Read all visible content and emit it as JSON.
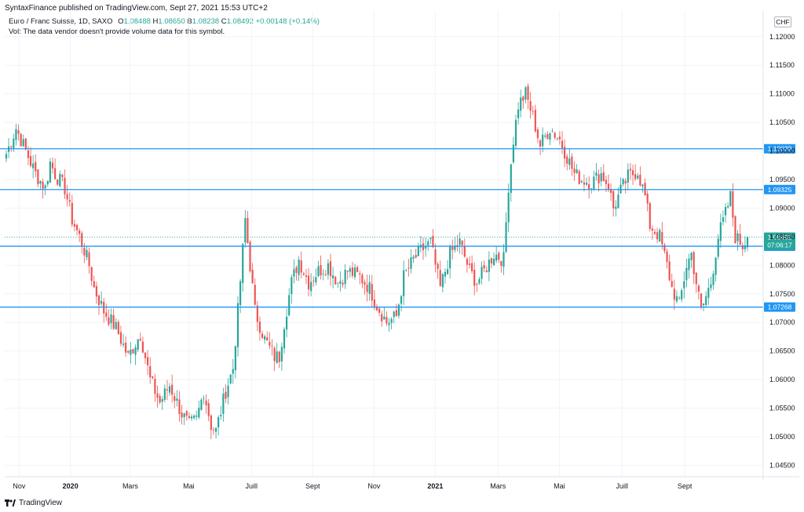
{
  "header": {
    "publisher_line": "SyntaxFinance published on TradingView.com, Sept 27, 2021 15:53 UTC+2",
    "symbol_line": "Euro / Franc Suisse, 1D, SAXO",
    "ohlc": {
      "o_label": "O",
      "o": "1.08488",
      "h_label": "H",
      "h": "1.08650",
      "b_label": "B",
      "b": "1.08238",
      "c_label": "C",
      "c": "1.08492",
      "change": "+0.00148 (+0.14%)"
    },
    "volume_note": "Vol: The data vendor doesn't provide volume data for this symbol.",
    "currency": "CHF"
  },
  "footer": {
    "brand": "TradingView",
    "logo_icon": "tradingview-logo-icon"
  },
  "colors": {
    "up": "#26a69a",
    "down": "#ef5350",
    "hline": "#2196f3",
    "grid": "#f0f3fa",
    "price_tag": "#26a69a",
    "axis_text": "#131722"
  },
  "chart_data": {
    "type": "candlestick",
    "ylim": [
      1.043,
      1.1245
    ],
    "y_ticks": [
      "1.12000",
      "1.11500",
      "1.11000",
      "1.10500",
      "1.10000",
      "1.09500",
      "1.09000",
      "1.08500",
      "1.08000",
      "1.07500",
      "1.07000",
      "1.06500",
      "1.06000",
      "1.05500",
      "1.05000",
      "1.04500"
    ],
    "x_labels": [
      "Nov",
      "2020",
      "Mars",
      "Mai",
      "Juill",
      "Sept",
      "Nov",
      "2021",
      "Mars",
      "Mai",
      "Juill",
      "Sept"
    ],
    "horizontal_levels": [
      {
        "label": "1.10039",
        "value": 1.10039
      },
      {
        "label": "1.09325",
        "value": 1.09325
      },
      {
        "label": "1.08333",
        "value": 1.08333
      },
      {
        "label": "1.07268",
        "value": 1.07268
      }
    ],
    "last_price": {
      "label": "1.08492",
      "value": 1.08492,
      "countdown": "07:06:17"
    },
    "path_anchors": [
      [
        0,
        1.0995
      ],
      [
        4,
        1.104
      ],
      [
        8,
        1.1
      ],
      [
        12,
        1.096
      ],
      [
        16,
        1.0935
      ],
      [
        18,
        1.098
      ],
      [
        20,
        1.096
      ],
      [
        24,
        1.0935
      ],
      [
        27,
        1.088
      ],
      [
        31,
        1.084
      ],
      [
        34,
        1.08
      ],
      [
        36,
        1.076
      ],
      [
        40,
        1.072
      ],
      [
        45,
        1.069
      ],
      [
        50,
        1.064
      ],
      [
        55,
        1.068
      ],
      [
        59,
        1.06
      ],
      [
        63,
        1.056
      ],
      [
        67,
        1.059
      ],
      [
        72,
        1.054
      ],
      [
        75,
        1.052
      ],
      [
        78,
        1.053
      ],
      [
        81,
        1.058
      ],
      [
        84,
        1.052
      ],
      [
        86,
        1.051
      ],
      [
        90,
        1.058
      ],
      [
        93,
        1.062
      ],
      [
        95,
        1.072
      ],
      [
        98,
        1.088
      ],
      [
        100,
        1.08
      ],
      [
        102,
        1.072
      ],
      [
        106,
        1.067
      ],
      [
        110,
        1.064
      ],
      [
        112,
        1.064
      ],
      [
        114,
        1.07
      ],
      [
        117,
        1.077
      ],
      [
        120,
        1.081
      ],
      [
        124,
        1.077
      ],
      [
        128,
        1.079
      ],
      [
        132,
        1.08
      ],
      [
        136,
        1.077
      ],
      [
        140,
        1.079
      ],
      [
        145,
        1.078
      ],
      [
        149,
        1.076
      ],
      [
        152,
        1.073
      ],
      [
        156,
        1.07
      ],
      [
        160,
        1.071
      ],
      [
        163,
        1.078
      ],
      [
        167,
        1.081
      ],
      [
        170,
        1.0825
      ],
      [
        174,
        1.084
      ],
      [
        176,
        1.08
      ],
      [
        178,
        1.076
      ],
      [
        182,
        1.082
      ],
      [
        186,
        1.084
      ],
      [
        190,
        1.079
      ],
      [
        193,
        1.077
      ],
      [
        196,
        1.079
      ],
      [
        200,
        1.082
      ],
      [
        204,
        1.081
      ],
      [
        206,
        1.094
      ],
      [
        208,
        1.102
      ],
      [
        210,
        1.108
      ],
      [
        213,
        1.11
      ],
      [
        216,
        1.106
      ],
      [
        219,
        1.101
      ],
      [
        223,
        1.104
      ],
      [
        227,
        1.102
      ],
      [
        230,
        1.099
      ],
      [
        233,
        1.096
      ],
      [
        236,
        1.095
      ],
      [
        240,
        1.0945
      ],
      [
        244,
        1.096
      ],
      [
        247,
        1.094
      ],
      [
        249,
        1.09
      ],
      [
        252,
        1.093
      ],
      [
        255,
        1.0955
      ],
      [
        259,
        1.0965
      ],
      [
        262,
        1.092
      ],
      [
        264,
        1.087
      ],
      [
        268,
        1.085
      ],
      [
        271,
        1.08
      ],
      [
        273,
        1.076
      ],
      [
        276,
        1.073
      ],
      [
        279,
        1.08
      ],
      [
        281,
        1.082
      ],
      [
        283,
        1.077
      ],
      [
        285,
        1.072
      ],
      [
        289,
        1.077
      ],
      [
        292,
        1.085
      ],
      [
        295,
        1.089
      ],
      [
        297,
        1.092
      ],
      [
        299,
        1.085
      ],
      [
        302,
        1.0835
      ],
      [
        304,
        1.0849
      ]
    ],
    "n_candles": 305
  }
}
